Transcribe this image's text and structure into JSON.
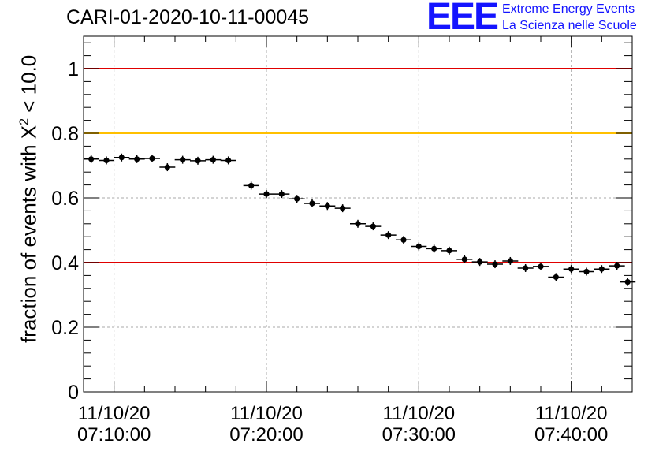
{
  "title": "CARI-01-2020-10-11-00045",
  "logo": {
    "letters": "EEE",
    "line1": "Extreme Energy Events",
    "line2": "La Scienza nelle Scuole"
  },
  "chart_data": {
    "type": "scatter",
    "ylabel_prefix": "fraction of events with ",
    "ylabel_symbol": "X",
    "ylabel_sup": "2",
    "ylabel_suffix": " < 10.0",
    "xlim_minutes": [
      -2,
      34
    ],
    "ylim": [
      0,
      1.1
    ],
    "y_ticks": [
      0,
      0.2,
      0.4,
      0.6,
      0.8,
      1
    ],
    "y_tick_labels": [
      "0",
      "0.2",
      "0.4",
      "0.6",
      "0.8",
      "1"
    ],
    "x_ticks": [
      {
        "minute": 0,
        "date": "11/10/20",
        "time": "07:10:00"
      },
      {
        "minute": 10,
        "date": "11/10/20",
        "time": "07:20:00"
      },
      {
        "minute": 20,
        "date": "11/10/20",
        "time": "07:30:00"
      },
      {
        "minute": 30,
        "date": "11/10/20",
        "time": "07:40:00"
      }
    ],
    "grid": true,
    "reference_lines": [
      {
        "y": 1.0,
        "color": "#e00000"
      },
      {
        "y": 0.8,
        "color": "#ffc000"
      },
      {
        "y": 0.4,
        "color": "#e00000"
      }
    ],
    "series": [
      {
        "x_minutes": [
          -1.5,
          -0.5,
          0.5,
          1.5,
          2.5,
          3.5,
          4.5,
          5.5,
          6.5,
          7.5,
          9.0,
          10.0,
          11.0,
          12.0,
          13.0,
          14.0,
          15.0,
          16.0,
          17.0,
          18.0,
          19.0,
          20.0,
          21.0,
          22.0,
          23.0,
          24.0,
          25.0,
          26.0,
          27.0,
          28.0,
          29.0,
          30.0,
          31.0,
          32.0,
          33.0,
          33.7
        ],
        "y": [
          0.72,
          0.716,
          0.725,
          0.72,
          0.722,
          0.695,
          0.718,
          0.715,
          0.718,
          0.716,
          0.638,
          0.612,
          0.612,
          0.597,
          0.583,
          0.575,
          0.568,
          0.52,
          0.512,
          0.485,
          0.47,
          0.45,
          0.443,
          0.437,
          0.41,
          0.402,
          0.395,
          0.405,
          0.383,
          0.388,
          0.355,
          0.38,
          0.372,
          0.38,
          0.39,
          0.34
        ],
        "color": "#000000"
      }
    ]
  }
}
